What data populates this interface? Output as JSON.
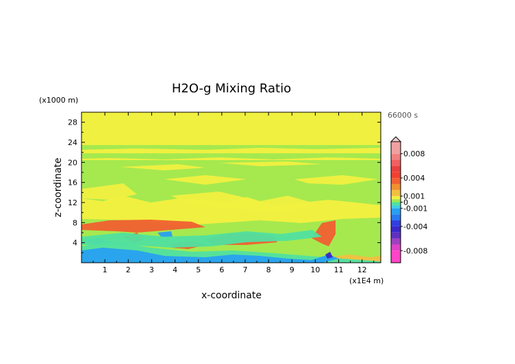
{
  "chart_data": {
    "type": "heatmap",
    "title": "H2O-g Mixing Ratio",
    "time_label": "66000 s",
    "xlabel": "x-coordinate",
    "ylabel": "z-coordinate",
    "x_unit": "(x1E4 m)",
    "y_unit": "(x1000 m)",
    "xlim": [
      0,
      12.8
    ],
    "ylim": [
      0,
      30
    ],
    "x_ticks": [
      "1",
      "2",
      "3",
      "4",
      "5",
      "6",
      "7",
      "8",
      "9",
      "10",
      "11",
      "12"
    ],
    "y_ticks": [
      "4",
      "8",
      "12",
      "16",
      "20",
      "24",
      "28"
    ],
    "colorbar": {
      "labels": [
        "0.008",
        "0.004",
        "0.001",
        "0",
        "-0.001",
        "-0.004",
        "-0.008"
      ],
      "range": [
        -0.01,
        0.01
      ],
      "colors": {
        "neg_high": "#ff44c8",
        "neg_mid": "#3c28c8",
        "neg_low": "#28a0f0",
        "near_zero_neg": "#50e0a0",
        "near_zero": "#a0e850",
        "zero_pos": "#f0f040",
        "pos_low": "#f0c040",
        "pos_mid": "#f06030",
        "pos_high": "#f0a0a0"
      }
    }
  }
}
